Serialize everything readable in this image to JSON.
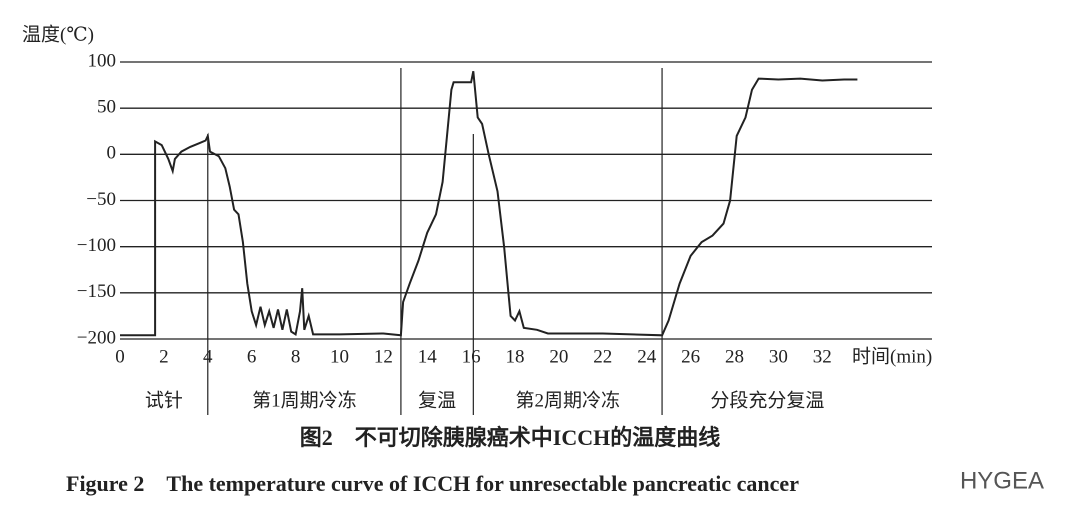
{
  "chart_data": {
    "type": "line",
    "y_label": "温度(℃)",
    "x_label": "时间(min)",
    "caption_cn": "图2　不可切除胰腺癌术中ICCH的温度曲线",
    "caption_en": "Figure 2　The temperature curve of ICCH for unresectable pancreatic cancer",
    "watermark": "HYGEA",
    "xlim": [
      0,
      37
    ],
    "xticks": [
      0,
      2,
      4,
      6,
      8,
      10,
      12,
      14,
      16,
      18,
      20,
      22,
      24,
      26,
      28,
      30,
      32
    ],
    "ylim": [
      -200,
      100
    ],
    "yticks": [
      {
        "value": -200,
        "label": "−200"
      },
      {
        "value": -150,
        "label": "−150"
      },
      {
        "value": -100,
        "label": "−100"
      },
      {
        "value": -50,
        "label": "−50"
      },
      0,
      50,
      100
    ],
    "grid": true,
    "dividers": [
      4,
      12.8,
      16.1,
      24.7
    ],
    "phases": [
      "试针",
      "第1周期冷冻",
      "复温",
      "第2周期冷冻",
      "分段充分复温"
    ],
    "series": [
      {
        "color": "#222222",
        "x": [
          0,
          1.6,
          1.6,
          1.9,
          2.2,
          2.4,
          2.5,
          2.8,
          3.2,
          3.6,
          3.9,
          4.0,
          4.1,
          4.5,
          4.8,
          5.0,
          5.2,
          5.4,
          5.6,
          5.8,
          6.0,
          6.2,
          6.4,
          6.6,
          6.8,
          7.0,
          7.2,
          7.4,
          7.6,
          7.8,
          8.0,
          8.2,
          8.3,
          8.4,
          8.6,
          8.8,
          10,
          12,
          12.8,
          12.9,
          13.2,
          13.6,
          14.0,
          14.4,
          14.7,
          14.9,
          15.1,
          15.2,
          16.0,
          16.1,
          16.3,
          16.5,
          16.8,
          17.2,
          17.5,
          17.7,
          17.8,
          18.0,
          18.2,
          18.4,
          19,
          19.5,
          22,
          24.7,
          25,
          25.5,
          26,
          26.5,
          27,
          27.5,
          27.8,
          28.1,
          28.5,
          28.8,
          29.1,
          30,
          31,
          32,
          33,
          33.6
        ],
        "values": [
          -196,
          -196,
          14,
          10,
          -5,
          -18,
          -5,
          3,
          8,
          12,
          15,
          20,
          3,
          -2,
          -15,
          -35,
          -60,
          -65,
          -95,
          -140,
          -170,
          -185,
          -165,
          -185,
          -170,
          -188,
          -168,
          -190,
          -168,
          -192,
          -195,
          -170,
          -145,
          -190,
          -175,
          -195,
          -195,
          -194,
          -196,
          -160,
          -140,
          -115,
          -85,
          -65,
          -30,
          20,
          70,
          78,
          78,
          90,
          40,
          33,
          0,
          -40,
          -100,
          -150,
          -175,
          -180,
          -170,
          -188,
          -190,
          -194,
          -194,
          -196,
          -180,
          -140,
          -110,
          -95,
          -88,
          -75,
          -50,
          20,
          40,
          70,
          82,
          81,
          82,
          80,
          81,
          81
        ]
      }
    ]
  }
}
